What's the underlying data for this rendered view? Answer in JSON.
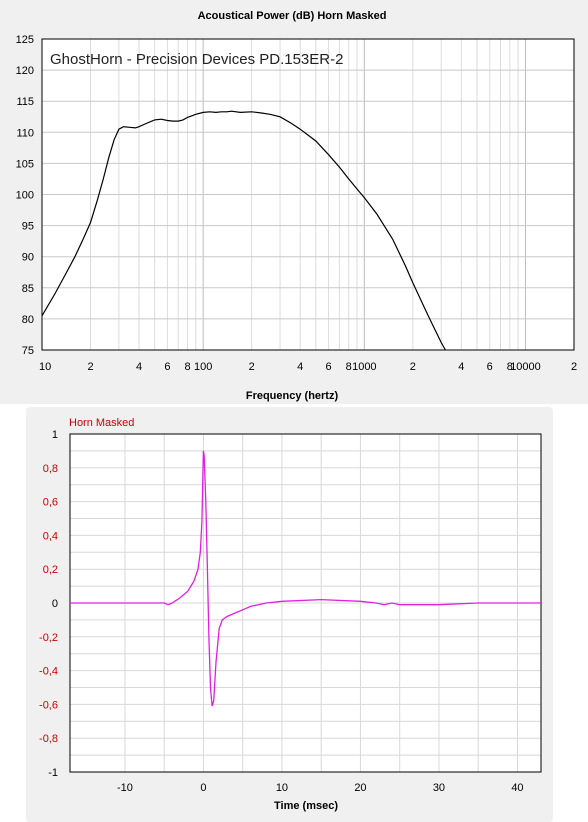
{
  "chart_data": [
    {
      "type": "line",
      "title": "Acoustical Power (dB)   Horn   Masked",
      "annotation": "GhostHorn - Precision Devices PD.153ER-2",
      "xlabel": "Frequency (hertz)",
      "ylabel": "",
      "xscale": "log",
      "xlim": [
        10,
        20000
      ],
      "ylim": [
        75,
        125
      ],
      "grid": true,
      "x_tick_labels": [
        {
          "value": 10,
          "label": "10"
        },
        {
          "value": 20,
          "label": "2"
        },
        {
          "value": 40,
          "label": "4"
        },
        {
          "value": 60,
          "label": "6"
        },
        {
          "value": 80,
          "label": "8"
        },
        {
          "value": 100,
          "label": "100"
        },
        {
          "value": 200,
          "label": "2"
        },
        {
          "value": 400,
          "label": "4"
        },
        {
          "value": 600,
          "label": "6"
        },
        {
          "value": 800,
          "label": "8"
        },
        {
          "value": 1000,
          "label": "1000"
        },
        {
          "value": 2000,
          "label": "2"
        },
        {
          "value": 4000,
          "label": "4"
        },
        {
          "value": 6000,
          "label": "6"
        },
        {
          "value": 8000,
          "label": "8"
        },
        {
          "value": 10000,
          "label": "10000"
        },
        {
          "value": 20000,
          "label": "2"
        }
      ],
      "y_ticks": [
        75,
        80,
        85,
        90,
        95,
        100,
        105,
        110,
        115,
        120,
        125
      ],
      "series": [
        {
          "color": "#000000",
          "x": [
            10,
            12,
            14,
            16,
            18,
            20,
            22,
            24,
            26,
            28,
            30,
            32,
            35,
            38,
            40,
            45,
            50,
            55,
            60,
            65,
            70,
            75,
            80,
            90,
            100,
            110,
            120,
            130,
            140,
            150,
            170,
            200,
            230,
            260,
            300,
            350,
            400,
            450,
            500,
            600,
            700,
            800,
            900,
            1000,
            1200,
            1500,
            1800,
            2000,
            2500,
            3000,
            3300,
            3500
          ],
          "y": [
            80.5,
            84,
            87.2,
            90,
            92.8,
            95.5,
            99,
            102.5,
            106,
            108.8,
            110.5,
            110.9,
            110.8,
            110.7,
            110.9,
            111.5,
            112,
            112.1,
            111.9,
            111.8,
            111.8,
            112,
            112.4,
            112.9,
            113.2,
            113.3,
            113.2,
            113.3,
            113.3,
            113.4,
            113.2,
            113.3,
            113.1,
            112.9,
            112.5,
            111.5,
            110.5,
            109.5,
            108.6,
            106.4,
            104.4,
            102.5,
            100.9,
            99.5,
            96.8,
            92.8,
            88.5,
            85.8,
            80.4,
            76.2,
            74.3,
            73.0
          ]
        }
      ]
    },
    {
      "type": "line",
      "title": "Horn   Masked",
      "xlabel": "Time (msec)",
      "ylabel": "",
      "xlim": [
        -17,
        43
      ],
      "ylim": [
        -1,
        1
      ],
      "grid": true,
      "x_ticks": [
        -10,
        0,
        10,
        20,
        30,
        40
      ],
      "y_tick_labels": [
        {
          "value": 1,
          "label": "1"
        },
        {
          "value": 0.8,
          "label": "0,8"
        },
        {
          "value": 0.6,
          "label": "0,6"
        },
        {
          "value": 0.4,
          "label": "0,4"
        },
        {
          "value": 0.2,
          "label": "0,2"
        },
        {
          "value": 0,
          "label": "0"
        },
        {
          "value": -0.2,
          "label": "-0,2"
        },
        {
          "value": -0.4,
          "label": "-0,4"
        },
        {
          "value": -0.6,
          "label": "-0,6"
        },
        {
          "value": -0.8,
          "label": "-0,8"
        },
        {
          "value": -1,
          "label": "-1"
        }
      ],
      "series": [
        {
          "color": "#e020e0",
          "x": [
            -17,
            -10,
            -6,
            -5,
            -4.5,
            -4,
            -3,
            -2,
            -1.2,
            -0.7,
            -0.4,
            -0.2,
            0,
            0.1,
            0.3,
            0.5,
            0.7,
            0.9,
            1.1,
            1.3,
            1.6,
            2,
            2.4,
            3,
            4,
            5,
            6,
            8,
            10,
            15,
            20,
            22,
            23,
            24,
            25,
            30,
            35,
            43
          ],
          "y": [
            0,
            0,
            0,
            0,
            -0.01,
            0,
            0.03,
            0.07,
            0.13,
            0.2,
            0.3,
            0.48,
            0.9,
            0.87,
            0.6,
            0.2,
            -0.2,
            -0.5,
            -0.61,
            -0.58,
            -0.35,
            -0.15,
            -0.1,
            -0.08,
            -0.06,
            -0.04,
            -0.02,
            0,
            0.01,
            0.02,
            0.01,
            0,
            -0.01,
            0,
            -0.01,
            -0.01,
            0,
            0
          ]
        }
      ]
    }
  ]
}
